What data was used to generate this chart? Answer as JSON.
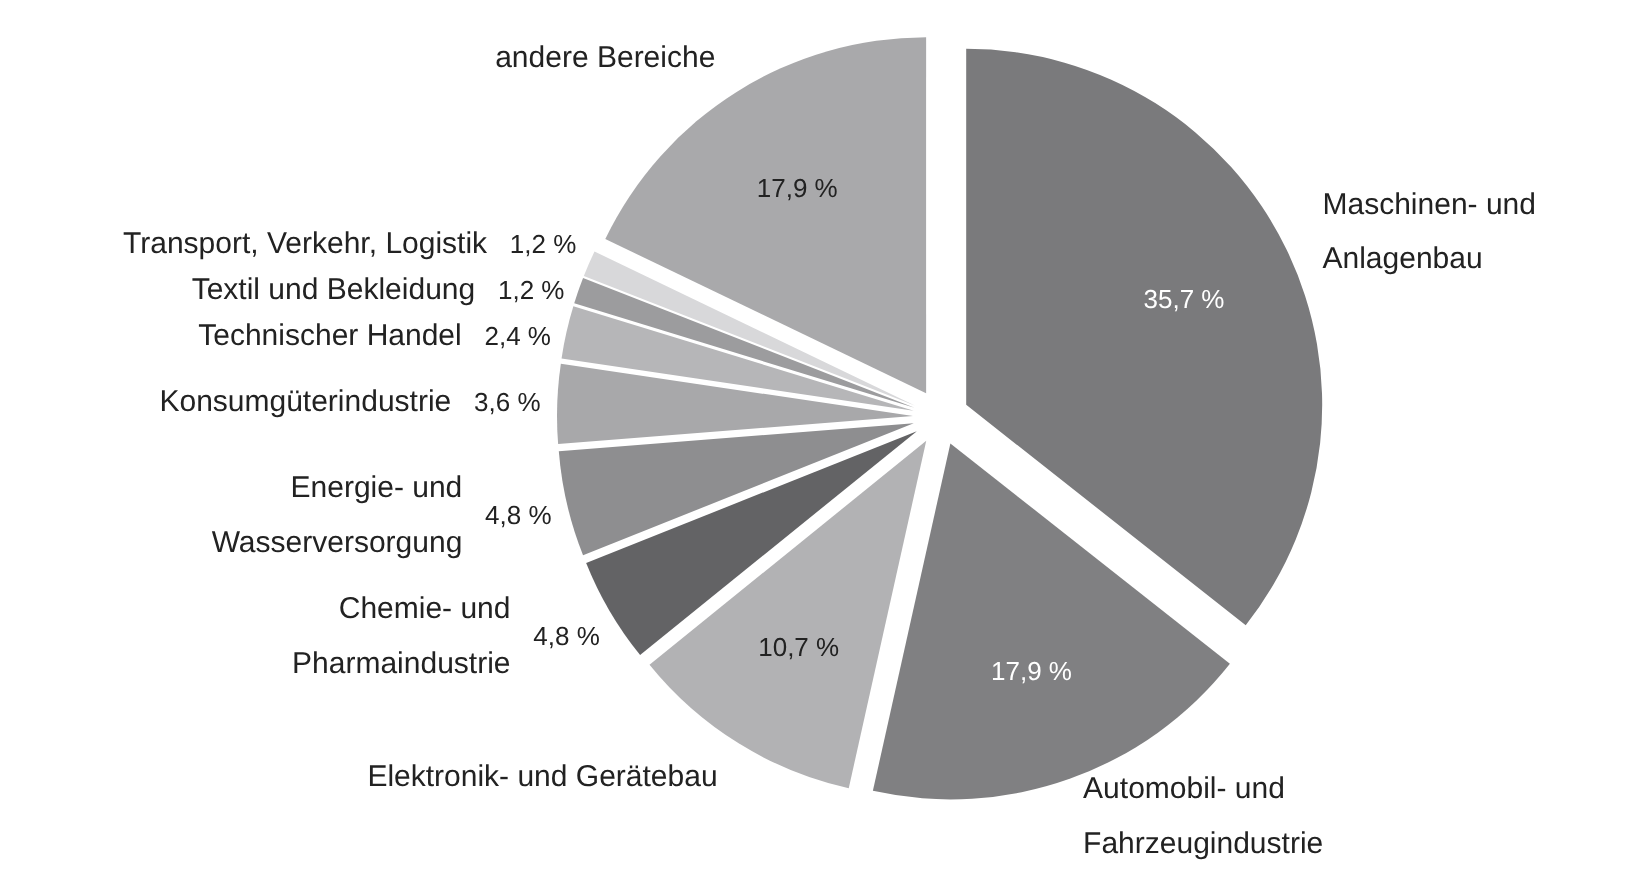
{
  "chart_data": {
    "type": "pie",
    "categories": [
      "Maschinen- und\nAnlagenbau",
      "Automobil- und\nFahrzeugindustrie",
      "Elektronik- und Gerätebau",
      "Chemie- und\nPharmaindustrie",
      "Energie- und\nWasserversorgung",
      "Konsumgüterindustrie",
      "Technischer Handel",
      "Textil und Bekleidung",
      "Transport, Verkehr, Logistik",
      "andere Bereiche"
    ],
    "values": [
      35.7,
      17.9,
      10.7,
      4.8,
      4.8,
      3.6,
      2.4,
      1.2,
      1.2,
      17.9
    ],
    "value_labels": [
      "35,7 %",
      "17,9 %",
      "10,7 %",
      "4,8 %",
      "4,8 %",
      "3,6 %",
      "2,4 %",
      "1,2 %",
      "1,2 %",
      "17,9 %"
    ],
    "colors": [
      "#7a7a7c",
      "#808082",
      "#b2b2b4",
      "#636365",
      "#8e8e90",
      "#a8a8aa",
      "#b6b6b8",
      "#9c9c9e",
      "#d8d8da",
      "#a9a9ab"
    ]
  }
}
